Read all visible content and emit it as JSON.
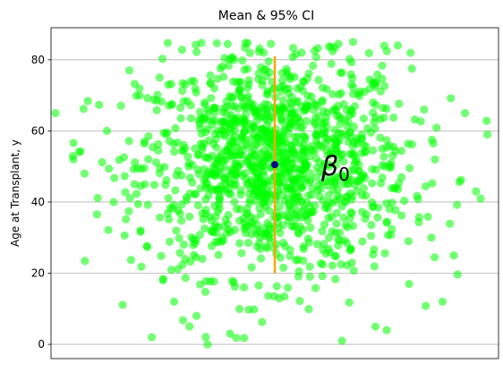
{
  "chart_data": {
    "type": "scatter",
    "title": "Mean & 95% CI",
    "xlabel": "",
    "ylabel": "Age at Transplant, y",
    "ylim": [
      -4,
      89
    ],
    "xlim": [
      -1,
      1
    ],
    "yticks": [
      0,
      20,
      40,
      60,
      80
    ],
    "ygrid": true,
    "xticks_visible": false,
    "point_color": "#00ff00",
    "point_alpha": 0.55,
    "mean_color": "#00008b",
    "ci_color": "#ffa500",
    "annotation_text": "β",
    "annotation_sub": "0",
    "stats": {
      "mean": 50.5,
      "ci_low": 20,
      "ci_high": 81
    },
    "outer_points": [
      {
        "x": -0.98,
        "y": 65
      },
      {
        "x": -0.9,
        "y": 52
      },
      {
        "x": -0.75,
        "y": 60
      },
      {
        "x": -0.65,
        "y": 77
      },
      {
        "x": -0.72,
        "y": 40
      },
      {
        "x": -0.6,
        "y": 32
      },
      {
        "x": -0.55,
        "y": 2
      },
      {
        "x": -0.5,
        "y": 18
      },
      {
        "x": -0.58,
        "y": 45
      },
      {
        "x": -0.45,
        "y": 12
      },
      {
        "x": -0.4,
        "y": 24
      },
      {
        "x": -0.35,
        "y": 8
      },
      {
        "x": -0.3,
        "y": 0
      },
      {
        "x": 0.85,
        "y": 65
      },
      {
        "x": 0.9,
        "y": 43
      },
      {
        "x": 0.92,
        "y": 41
      },
      {
        "x": 0.7,
        "y": 30
      },
      {
        "x": 0.75,
        "y": 12
      },
      {
        "x": 0.55,
        "y": 84
      },
      {
        "x": 0.35,
        "y": 85
      },
      {
        "x": 0.45,
        "y": 5
      },
      {
        "x": 0.3,
        "y": 1
      },
      {
        "x": 0.8,
        "y": 25
      },
      {
        "x": 0.6,
        "y": 17
      },
      {
        "x": -0.05,
        "y": 82
      },
      {
        "x": 0.12,
        "y": 82
      },
      {
        "x": 0.5,
        "y": 4
      },
      {
        "x": -0.85,
        "y": 48
      },
      {
        "x": 0.95,
        "y": 59
      },
      {
        "x": -0.2,
        "y": 3
      }
    ]
  }
}
